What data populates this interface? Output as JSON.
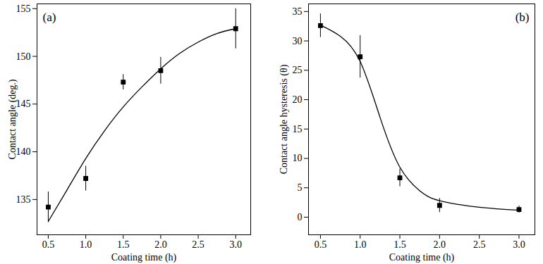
{
  "chart_data": [
    {
      "type": "scatter",
      "annotations": [
        "(a)"
      ],
      "xlabel": "Coating time (h)",
      "ylabel": "Contact angle (deg.)",
      "grid": false,
      "xlim": [
        0.35,
        3.2
      ],
      "xticks": [
        {
          "value": 0.5,
          "label": "0.5"
        },
        {
          "value": 1,
          "label": "1.0"
        },
        {
          "value": 1.5,
          "label": "1.5"
        },
        {
          "value": 2,
          "label": "2.0"
        },
        {
          "value": 2.5,
          "label": "2.5"
        },
        {
          "value": 3,
          "label": "3.0"
        }
      ],
      "ylim": [
        131.3,
        155.5
      ],
      "yticks": [
        135,
        140,
        145,
        150,
        155
      ],
      "series": [
        {
          "type": "scatter",
          "marker": "square",
          "color": "#000000",
          "x": [
            0.5,
            1.0,
            1.5,
            2.0,
            3.0
          ],
          "values": [
            134.2,
            137.2,
            147.3,
            148.5,
            152.9
          ],
          "error": [
            1.6,
            1.3,
            0.8,
            1.4,
            2.1
          ]
        },
        {
          "type": "line",
          "line_style": "solid",
          "color": "#000000",
          "x": [
            0.5,
            0.75,
            1.0,
            1.25,
            1.5,
            1.75,
            2.0,
            2.25,
            2.5,
            2.75,
            3.0
          ],
          "values": [
            132.7,
            136.0,
            139.3,
            142.2,
            144.7,
            146.8,
            148.7,
            150.3,
            151.5,
            152.4,
            152.9
          ]
        }
      ]
    },
    {
      "type": "scatter",
      "annotations": [
        "(b)"
      ],
      "xlabel": "Coating time (h)",
      "ylabel": "Contact angle hysteresis (θ)",
      "grid": false,
      "xlim": [
        0.35,
        3.2
      ],
      "xticks": [
        {
          "value": 0.5,
          "label": "0.5"
        },
        {
          "value": 1,
          "label": "1.0"
        },
        {
          "value": 1.5,
          "label": "1.5"
        },
        {
          "value": 2,
          "label": "2.0"
        },
        {
          "value": 2.5,
          "label": "2.5"
        },
        {
          "value": 3,
          "label": "3.0"
        }
      ],
      "ylim": [
        -3,
        36.3
      ],
      "yticks": [
        0,
        5,
        10,
        15,
        20,
        25,
        30,
        35
      ],
      "series": [
        {
          "type": "scatter",
          "marker": "square",
          "color": "#000000",
          "x": [
            0.5,
            1.0,
            1.5,
            2.0,
            3.0
          ],
          "values": [
            32.6,
            27.3,
            6.7,
            2.0,
            1.3
          ],
          "error": [
            2.0,
            3.6,
            1.5,
            1.2,
            0.6
          ]
        },
        {
          "type": "line",
          "line_style": "solid",
          "color": "#000000",
          "x": [
            0.5,
            0.75,
            1.0,
            1.25,
            1.5,
            1.75,
            2.0,
            2.5,
            3.0
          ],
          "values": [
            32.7,
            30.8,
            26.5,
            17.0,
            8.5,
            4.5,
            2.8,
            1.7,
            1.2
          ]
        }
      ]
    }
  ]
}
